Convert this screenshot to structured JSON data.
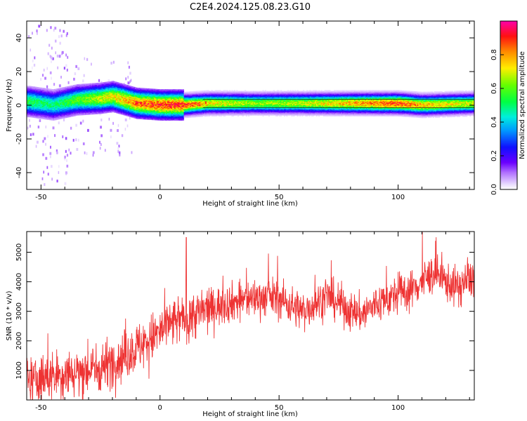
{
  "figure_title": "C2E4.2024.125.08.23.G10",
  "chart_data": [
    {
      "type": "heatmap",
      "xlabel": "Height of straight line (km)",
      "ylabel": "Frequency (Hz)",
      "xlim": [
        -56,
        132
      ],
      "ylim": [
        -50,
        50
      ],
      "xticks": [
        -50,
        0,
        50,
        100
      ],
      "yticks": [
        -40,
        -20,
        0,
        20,
        40
      ],
      "colorbar": {
        "label": "Normalized spectral amplitude",
        "range": [
          0,
          1
        ],
        "ticks": [
          "0.0",
          "0.2",
          "0.4",
          "0.6",
          "0.8"
        ],
        "colormap": "rainbow (white → violet → blue → cyan → green → yellow → orange → red → magenta)"
      },
      "ridge": {
        "description": "Dominant Doppler frequency band versus height",
        "x": [
          -55,
          -45,
          -35,
          -25,
          -20,
          -15,
          -10,
          0,
          10,
          20,
          40,
          60,
          80,
          100,
          110,
          132
        ],
        "center_freq": [
          2,
          0,
          3,
          4,
          5,
          3,
          1,
          0,
          0,
          1,
          1,
          1,
          1,
          1,
          0,
          1
        ],
        "peak_amplitude": [
          0.55,
          0.5,
          0.6,
          0.7,
          0.75,
          0.8,
          0.85,
          0.9,
          0.9,
          0.75,
          0.65,
          0.7,
          0.8,
          0.9,
          0.8,
          0.7
        ]
      }
    },
    {
      "type": "line",
      "xlabel": "Height of straight line (km)",
      "ylabel": "SNR (10 * v/v)",
      "xlim": [
        -56,
        132
      ],
      "ylim": [
        0,
        5700
      ],
      "xticks": [
        -50,
        0,
        50,
        100
      ],
      "yticks": [
        1000,
        2000,
        3000,
        4000,
        5000
      ],
      "line_color": "#ee3333",
      "series": [
        {
          "x": [
            -56,
            -50,
            -45,
            -40,
            -35,
            -30,
            -25,
            -20,
            -15,
            -10,
            -5,
            0,
            5,
            10,
            15,
            20,
            25,
            30,
            35,
            40,
            45,
            50,
            55,
            60,
            65,
            70,
            75,
            80,
            85,
            90,
            95,
            100,
            105,
            110,
            115,
            120,
            125,
            132
          ],
          "values": [
            650,
            700,
            800,
            900,
            950,
            1000,
            1100,
            1300,
            1500,
            1750,
            2000,
            2300,
            2600,
            2750,
            2900,
            3050,
            3200,
            3300,
            3400,
            3450,
            3500,
            3450,
            3200,
            3000,
            3250,
            3500,
            3300,
            3000,
            2900,
            3200,
            3400,
            3600,
            3700,
            4000,
            4300,
            4000,
            3800,
            4200
          ]
        }
      ],
      "spike": {
        "x": 11,
        "value": 5500
      }
    }
  ]
}
